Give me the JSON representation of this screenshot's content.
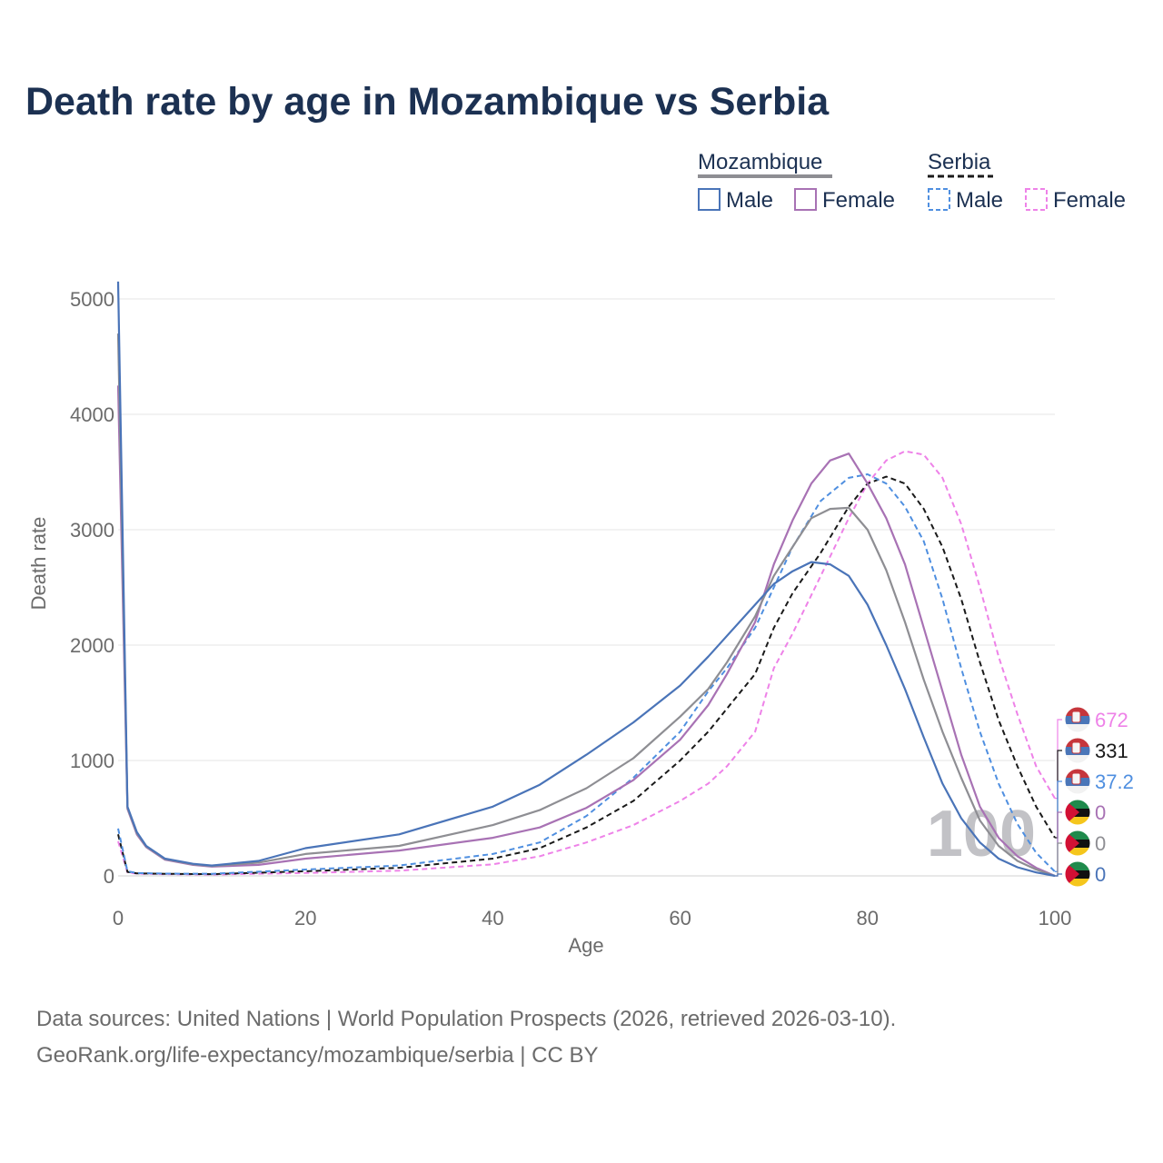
{
  "title": "Death rate by age in Mozambique vs Serbia",
  "sources": {
    "line1": "Data sources: United Nations | World Population Prospects (2026, retrieved 2026-03-10).",
    "line2": "GeoRank.org/life-expectancy/mozambique/serbia | CC BY"
  },
  "colors": {
    "moz_male": "#4a74b8",
    "moz_female": "#a872b4",
    "moz_both": "#8e8e93",
    "srb_male": "#4f8fe0",
    "srb_female": "#ee82e8",
    "srb_both": "#1a1a1a",
    "grid": "#e6e6e6",
    "axis_text": "#6b6b6b",
    "title": "#1c3152"
  },
  "legend": {
    "group1": "Mozambique",
    "group2": "Serbia",
    "male": "Male",
    "female": "Female"
  },
  "chart_data": {
    "type": "line",
    "title": "Death rate by age in Mozambique vs Serbia",
    "xlabel": "Age",
    "ylabel": "Death rate",
    "xlim": [
      0,
      100
    ],
    "ylim": [
      0,
      5200
    ],
    "x_ticks": [
      0,
      20,
      40,
      60,
      80,
      100
    ],
    "y_ticks": [
      0,
      1000,
      2000,
      3000,
      4000,
      5000
    ],
    "grid": true,
    "age_watermark": "100",
    "series": [
      {
        "name": "Serbia Female",
        "country": "Serbia",
        "sex": "Female",
        "dashed": true,
        "x": [
          0,
          1,
          2,
          5,
          10,
          20,
          30,
          40,
          45,
          50,
          55,
          60,
          63,
          65,
          68,
          70,
          72,
          75,
          78,
          80,
          82,
          84,
          86,
          88,
          90,
          92,
          94,
          96,
          98,
          100
        ],
        "values": [
          300,
          30,
          20,
          15,
          12,
          25,
          45,
          100,
          170,
          290,
          440,
          650,
          800,
          950,
          1250,
          1800,
          2100,
          2600,
          3100,
          3400,
          3600,
          3680,
          3650,
          3450,
          3050,
          2500,
          1900,
          1400,
          950,
          672
        ],
        "end_label": "672"
      },
      {
        "name": "Serbia Both",
        "country": "Serbia",
        "sex": "Both",
        "dashed": true,
        "x": [
          0,
          1,
          2,
          5,
          10,
          20,
          30,
          40,
          45,
          50,
          55,
          60,
          63,
          65,
          68,
          70,
          72,
          75,
          78,
          80,
          82,
          84,
          86,
          88,
          90,
          92,
          94,
          96,
          98,
          100
        ],
        "values": [
          360,
          35,
          22,
          18,
          15,
          40,
          70,
          150,
          240,
          420,
          650,
          1000,
          1250,
          1450,
          1750,
          2150,
          2450,
          2800,
          3200,
          3400,
          3460,
          3400,
          3180,
          2850,
          2400,
          1850,
          1350,
          950,
          600,
          331
        ],
        "end_label": "331"
      },
      {
        "name": "Serbia Male",
        "country": "Serbia",
        "sex": "Male",
        "dashed": true,
        "x": [
          0,
          1,
          2,
          5,
          10,
          20,
          30,
          40,
          45,
          50,
          55,
          60,
          63,
          65,
          68,
          70,
          72,
          75,
          78,
          80,
          82,
          84,
          86,
          88,
          90,
          92,
          94,
          96,
          98,
          100
        ],
        "values": [
          410,
          40,
          25,
          20,
          18,
          55,
          90,
          190,
          290,
          520,
          850,
          1250,
          1600,
          1800,
          2150,
          2500,
          2850,
          3250,
          3450,
          3480,
          3400,
          3200,
          2900,
          2400,
          1800,
          1250,
          800,
          450,
          200,
          37.2
        ],
        "end_label": "37.2"
      },
      {
        "name": "Mozambique Female",
        "country": "Mozambique",
        "sex": "Female",
        "dashed": false,
        "x": [
          0,
          1,
          2,
          3,
          5,
          8,
          10,
          15,
          20,
          30,
          40,
          45,
          50,
          55,
          60,
          63,
          65,
          68,
          70,
          72,
          74,
          76,
          78,
          80,
          82,
          84,
          86,
          88,
          90,
          92,
          94,
          96,
          98,
          100
        ],
        "values": [
          4250,
          580,
          360,
          250,
          140,
          95,
          80,
          95,
          150,
          220,
          330,
          420,
          590,
          830,
          1180,
          1480,
          1750,
          2200,
          2700,
          3080,
          3400,
          3600,
          3660,
          3400,
          3100,
          2700,
          2150,
          1600,
          1050,
          600,
          330,
          170,
          70,
          0
        ],
        "end_label": "0"
      },
      {
        "name": "Mozambique Both",
        "country": "Mozambique",
        "sex": "Both",
        "dashed": false,
        "x": [
          0,
          1,
          2,
          3,
          5,
          8,
          10,
          15,
          20,
          30,
          40,
          45,
          50,
          55,
          60,
          63,
          65,
          68,
          70,
          72,
          74,
          76,
          78,
          80,
          82,
          84,
          86,
          88,
          90,
          92,
          94,
          96,
          98,
          100
        ],
        "values": [
          4700,
          590,
          370,
          255,
          145,
          100,
          85,
          115,
          190,
          260,
          440,
          570,
          760,
          1020,
          1380,
          1620,
          1850,
          2250,
          2600,
          2850,
          3100,
          3180,
          3190,
          3000,
          2650,
          2200,
          1700,
          1250,
          850,
          480,
          260,
          130,
          55,
          0
        ],
        "end_label": "0"
      },
      {
        "name": "Mozambique Male",
        "country": "Mozambique",
        "sex": "Male",
        "dashed": false,
        "x": [
          0,
          1,
          2,
          3,
          5,
          8,
          10,
          15,
          20,
          30,
          40,
          45,
          50,
          55,
          60,
          63,
          65,
          68,
          70,
          72,
          74,
          76,
          78,
          80,
          82,
          84,
          86,
          88,
          90,
          92,
          94,
          96,
          98,
          100
        ],
        "values": [
          5150,
          600,
          380,
          260,
          150,
          105,
          90,
          130,
          240,
          360,
          600,
          790,
          1050,
          1330,
          1650,
          1900,
          2080,
          2350,
          2530,
          2640,
          2720,
          2700,
          2600,
          2350,
          2000,
          1620,
          1200,
          800,
          500,
          290,
          150,
          75,
          30,
          0
        ],
        "end_label": "0"
      }
    ]
  }
}
